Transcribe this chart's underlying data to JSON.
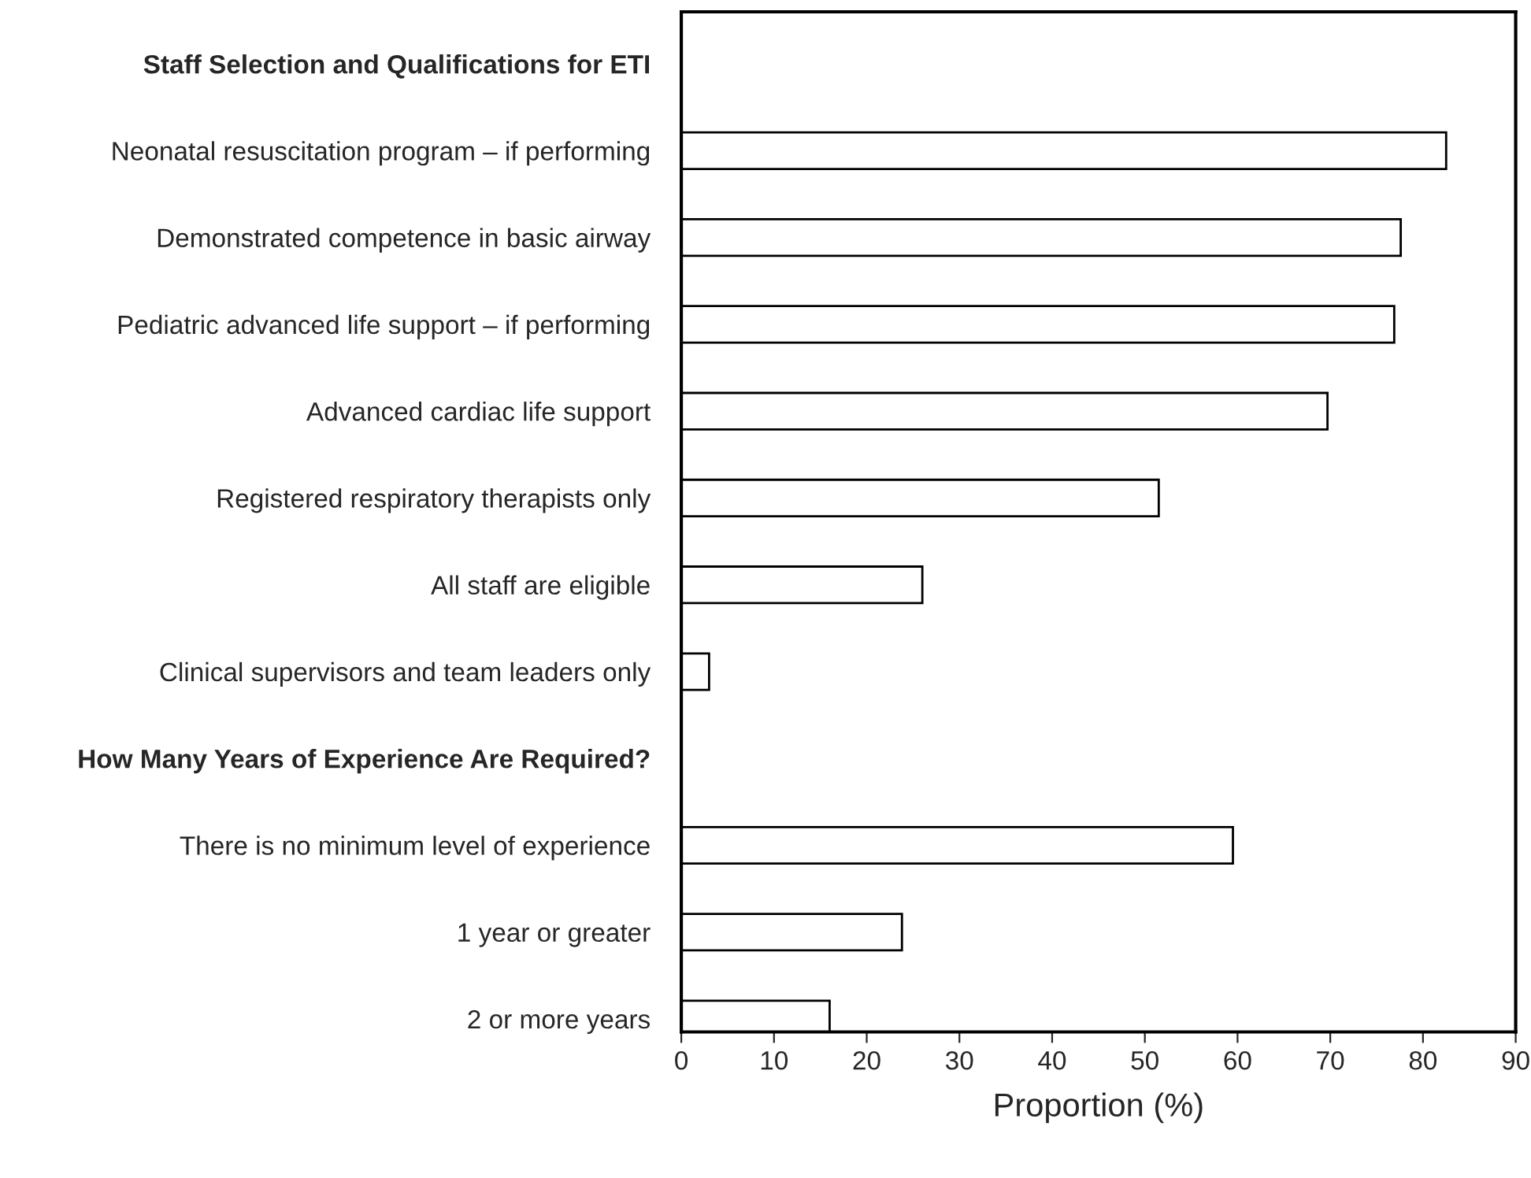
{
  "chart_data": {
    "type": "bar",
    "orientation": "horizontal",
    "xlabel": "Proportion (%)",
    "categories": [
      "Staff Selection and Qualifications for ETI",
      "Neonatal resuscitation program – if performing",
      "Demonstrated competence in basic airway",
      "Pediatric advanced life support – if performing",
      "Advanced cardiac life support",
      "Registered respiratory therapists only",
      "All staff are eligible",
      "Clinical supervisors and team leaders only",
      "How Many Years of Experience Are Required?",
      "There is no minimum level of experience",
      "1 year or greater",
      "2 or more years"
    ],
    "values": [
      null,
      82.5,
      77.6,
      76.9,
      69.7,
      51.5,
      26,
      3,
      null,
      59.5,
      23.8,
      16
    ],
    "color": "#ffffff",
    "xlim": [
      0,
      90
    ],
    "xticks": [
      0,
      10,
      20,
      30,
      40,
      50,
      60,
      70,
      80,
      90
    ],
    "grid": false,
    "legend": false
  }
}
